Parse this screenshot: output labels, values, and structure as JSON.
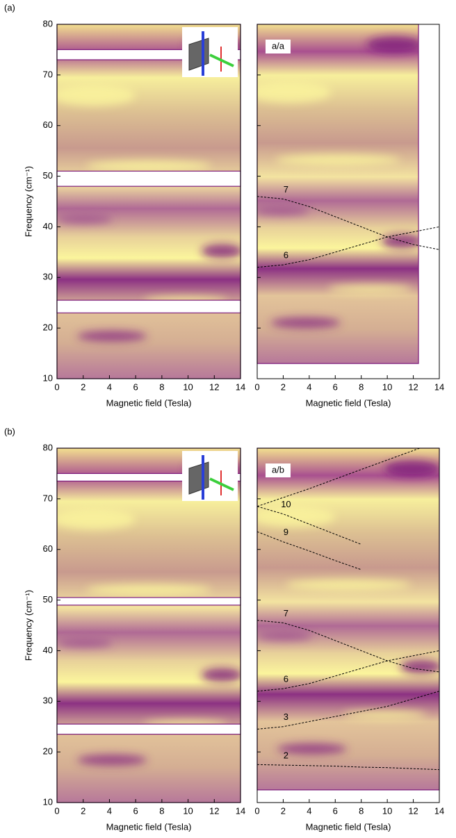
{
  "panel_labels": [
    "(a)",
    "(b)"
  ],
  "chart_data": [
    {
      "type": "heatmap",
      "panel": 0,
      "xlabel": "Magnetic field (Tesla)",
      "ylabel": "Frequency (cm⁻¹)",
      "xlim": [
        0,
        14
      ],
      "ylim": [
        10,
        80
      ],
      "xticks": [
        0,
        2,
        4,
        6,
        8,
        10,
        12,
        14
      ],
      "yticks": [
        10,
        20,
        30,
        40,
        50,
        60,
        70,
        80
      ],
      "show_ytick_labels": true,
      "data_extent": {
        "x": [
          0,
          14
        ],
        "y": [
          10,
          80
        ]
      },
      "gaps": [
        [
          73,
          75
        ],
        [
          48,
          51
        ],
        [
          23,
          25.5
        ]
      ],
      "inset": true,
      "series": []
    },
    {
      "type": "heatmap",
      "panel": 0,
      "annotation": "a/a",
      "xlabel": "Magnetic field (Tesla)",
      "xlim": [
        0,
        14
      ],
      "ylim": [
        10,
        80
      ],
      "xticks": [
        0,
        2,
        4,
        6,
        8,
        10,
        12,
        14
      ],
      "yticks": [
        10,
        20,
        30,
        40,
        50,
        60,
        70,
        80
      ],
      "show_ytick_labels": false,
      "data_extent": {
        "x": [
          0,
          12.4
        ],
        "y": [
          13,
          80
        ]
      },
      "gaps": [],
      "inset": false,
      "series": [
        {
          "name": "7",
          "color": "#000000",
          "x": [
            0,
            2,
            4,
            6,
            8,
            10,
            12,
            14
          ],
          "values": [
            46,
            45.5,
            44,
            42,
            40,
            38,
            36.5,
            35.5
          ]
        },
        {
          "name": "6",
          "color": "#000000",
          "x": [
            0,
            2,
            4,
            6,
            8,
            10,
            12,
            14
          ],
          "values": [
            32,
            32.5,
            33.5,
            35,
            36.5,
            38,
            39,
            40
          ]
        }
      ]
    },
    {
      "type": "heatmap",
      "panel": 1,
      "xlabel": "Magnetic field (Tesla)",
      "ylabel": "Frequency (cm⁻¹)",
      "xlim": [
        0,
        14
      ],
      "ylim": [
        10,
        80
      ],
      "xticks": [
        0,
        2,
        4,
        6,
        8,
        10,
        12,
        14
      ],
      "yticks": [
        10,
        20,
        30,
        40,
        50,
        60,
        70,
        80
      ],
      "show_ytick_labels": true,
      "data_extent": {
        "x": [
          0,
          14
        ],
        "y": [
          10,
          80
        ]
      },
      "gaps": [
        [
          73.5,
          75
        ],
        [
          49,
          50.5
        ],
        [
          23.5,
          25.5
        ]
      ],
      "inset": true,
      "series": []
    },
    {
      "type": "heatmap",
      "panel": 1,
      "annotation": "a/b",
      "xlabel": "Magnetic field (Tesla)",
      "xlim": [
        0,
        14
      ],
      "ylim": [
        10,
        80
      ],
      "xticks": [
        0,
        2,
        4,
        6,
        8,
        10,
        12,
        14
      ],
      "yticks": [
        10,
        20,
        30,
        40,
        50,
        60,
        70,
        80
      ],
      "show_ytick_labels": false,
      "data_extent": {
        "x": [
          0,
          14
        ],
        "y": [
          12.5,
          80
        ]
      },
      "gaps": [],
      "inset": false,
      "series": [
        {
          "color": "#000000",
          "x": [
            0,
            4,
            8,
            12.5
          ],
          "values": [
            68.5,
            72,
            75.8,
            80
          ]
        },
        {
          "name": "10",
          "color": "#000000",
          "x": [
            0,
            2,
            4,
            6,
            8
          ],
          "values": [
            68.5,
            67,
            65,
            63,
            61
          ]
        },
        {
          "name": "9",
          "color": "#000000",
          "x": [
            0,
            2,
            4,
            6,
            8
          ],
          "values": [
            63.5,
            61.5,
            59.7,
            57.8,
            56
          ]
        },
        {
          "name": "7",
          "color": "#000000",
          "x": [
            0,
            2,
            4,
            6,
            8,
            10,
            12,
            14
          ],
          "values": [
            46,
            45.5,
            44,
            42,
            40,
            38,
            36.5,
            35.8
          ]
        },
        {
          "name": "6",
          "color": "#000000",
          "x": [
            0,
            2,
            4,
            6,
            8,
            10,
            12,
            14
          ],
          "values": [
            32,
            32.5,
            33.5,
            35,
            36.5,
            38,
            39,
            40
          ]
        },
        {
          "name": "3",
          "color": "#000000",
          "x": [
            0,
            2,
            4,
            6,
            8,
            10,
            12,
            14
          ],
          "values": [
            24.5,
            25,
            26,
            27,
            28,
            29,
            30.5,
            32
          ]
        },
        {
          "name": "2",
          "color": "#000000",
          "x": [
            0,
            2,
            4,
            6,
            8,
            10,
            12,
            14
          ],
          "values": [
            17.5,
            17.4,
            17.3,
            17.2,
            17,
            16.9,
            16.7,
            16.5
          ]
        }
      ]
    }
  ]
}
